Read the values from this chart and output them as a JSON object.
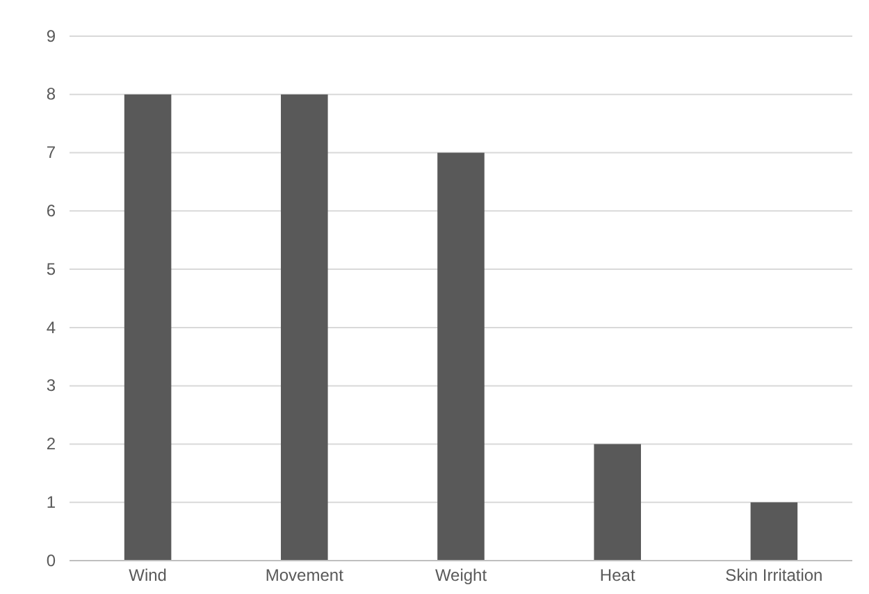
{
  "chart_data": {
    "type": "bar",
    "categories": [
      "Wind",
      "Movement",
      "Weight",
      "Heat",
      "Skin Irritation"
    ],
    "values": [
      8,
      8,
      7,
      2,
      1
    ],
    "color": "#595959",
    "ylim": [
      0,
      9
    ],
    "yticks": [
      0,
      1,
      2,
      3,
      4,
      5,
      6,
      7,
      8,
      9
    ],
    "grid": "y"
  }
}
